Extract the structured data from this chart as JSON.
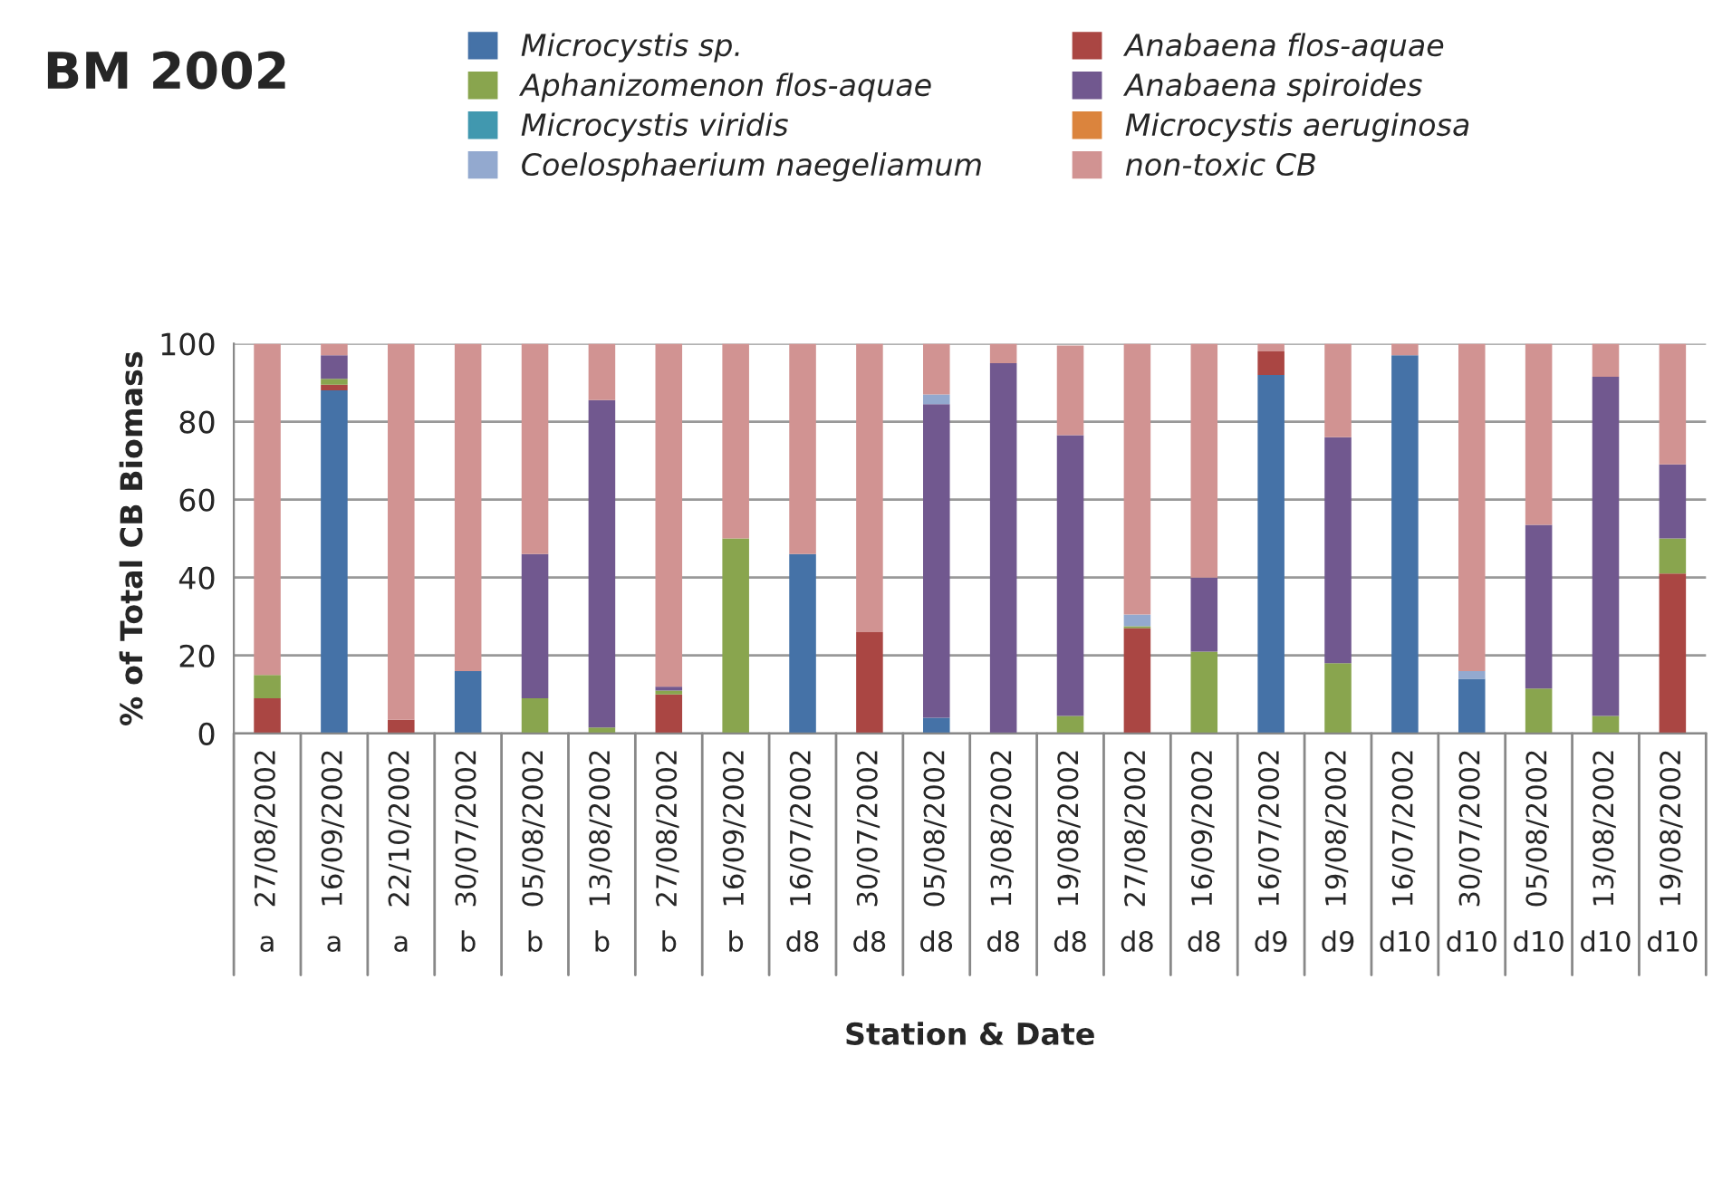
{
  "chart_data": {
    "type": "bar",
    "stacked": true,
    "title": "BM 2002",
    "xlabel": "Station & Date",
    "ylabel": "% of Total CB Biomass",
    "categories": [
      "27/08/2002",
      "16/09/2002",
      "22/10/2002",
      "30/07/2002",
      "05/08/2002",
      "13/08/2002",
      "27/08/2002",
      "16/09/2002",
      "16/07/2002",
      "30/07/2002",
      "05/08/2002",
      "13/08/2002",
      "19/08/2002",
      "27/08/2002",
      "16/09/2002",
      "16/07/2002",
      "19/08/2002",
      "16/07/2002",
      "30/07/2002",
      "05/08/2002",
      "13/08/2002",
      "19/08/2002"
    ],
    "annotations": [
      "a",
      "a",
      "a",
      "b",
      "b",
      "b",
      "b",
      "b",
      "d8",
      "d8",
      "d8",
      "d8",
      "d8",
      "d8",
      "d8",
      "d9",
      "d9",
      "d10",
      "d10",
      "d10",
      "d10",
      "d10"
    ],
    "series": [
      {
        "name": "Microcystis sp.",
        "color": "#4572a7",
        "values": [
          0,
          88,
          0,
          16,
          0,
          0,
          0,
          0,
          46,
          0,
          4,
          0,
          0,
          0,
          0,
          92,
          0,
          97,
          14,
          0,
          0,
          0
        ]
      },
      {
        "name": "Anabaena flos-aquae",
        "color": "#aa4643",
        "values": [
          9,
          1.5,
          3.5,
          0,
          0,
          0,
          10,
          0,
          0,
          26,
          0,
          0,
          0,
          27,
          0,
          6,
          0,
          0,
          0,
          0,
          0,
          41
        ]
      },
      {
        "name": "Aphanizomenon flos-aquae",
        "color": "#89a54e",
        "values": [
          6,
          1.5,
          0,
          0,
          9,
          1.5,
          1,
          50,
          0,
          0,
          0,
          0,
          4.5,
          0.5,
          21,
          0,
          18,
          0,
          0,
          11.5,
          4.5,
          9
        ]
      },
      {
        "name": "Anabaena spiroides",
        "color": "#71588f",
        "values": [
          0,
          6,
          0,
          0,
          37,
          84,
          1,
          0,
          0,
          0,
          80.5,
          95,
          72,
          0,
          19,
          0,
          58,
          0,
          0,
          42,
          87,
          19
        ]
      },
      {
        "name": "Microcystis viridis",
        "color": "#4198af",
        "values": [
          0,
          0,
          0,
          0,
          0,
          0,
          0,
          0,
          0,
          0,
          0,
          0,
          0,
          0,
          0,
          0,
          0,
          0,
          0,
          0,
          0,
          0
        ]
      },
      {
        "name": "Microcystis aeruginosa",
        "color": "#db843d",
        "values": [
          0,
          0,
          0,
          0,
          0,
          0,
          0,
          0,
          0,
          0,
          0,
          0,
          0,
          0,
          0,
          0,
          0,
          0,
          0,
          0,
          0,
          0
        ]
      },
      {
        "name": "Coelosphaerium naegeliamum",
        "color": "#93a9cf",
        "values": [
          0,
          0,
          0,
          0,
          0,
          0,
          0,
          0,
          0,
          0,
          2.5,
          0,
          0,
          3,
          0,
          0,
          0,
          0,
          2,
          0,
          0,
          0
        ]
      },
      {
        "name": "non-toxic CB",
        "color": "#d19392",
        "values": [
          85,
          3,
          96.5,
          84,
          54,
          14.5,
          88,
          50,
          54,
          74,
          13,
          5,
          23,
          69.5,
          60,
          2,
          24,
          3,
          84,
          46.5,
          8.5,
          31
        ]
      }
    ],
    "ylim": [
      0,
      100
    ],
    "yticks": [
      0,
      20,
      40,
      60,
      80,
      100
    ],
    "grid": "y",
    "legend": "top"
  }
}
